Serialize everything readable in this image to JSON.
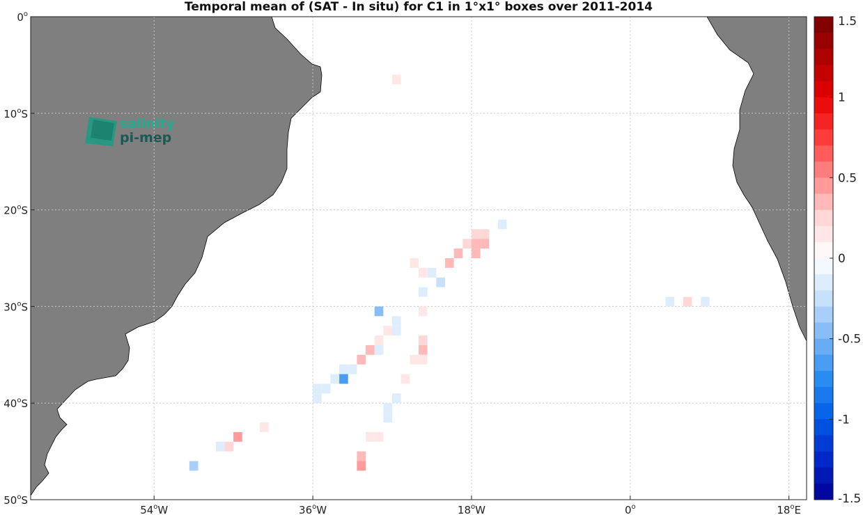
{
  "title": "Temporal mean of (SAT - In situ) for C1 in 1°x1° boxes over 2011-2014",
  "logo": {
    "line1": "salinity",
    "line2": "pi-mep"
  },
  "map": {
    "lon_range": [
      -68,
      20
    ],
    "lat_range": [
      -50,
      0
    ],
    "x_ticks": [
      {
        "lon": -54,
        "deg": "54",
        "hemi": "W"
      },
      {
        "lon": -36,
        "deg": "36",
        "hemi": "W"
      },
      {
        "lon": -18,
        "deg": "18",
        "hemi": "W"
      },
      {
        "lon": 0,
        "deg": "0",
        "hemi": ""
      },
      {
        "lon": 18,
        "deg": "18",
        "hemi": "E"
      }
    ],
    "y_ticks": [
      {
        "lat": 0,
        "deg": "0",
        "hemi": ""
      },
      {
        "lat": -10,
        "deg": "10",
        "hemi": "S"
      },
      {
        "lat": -20,
        "deg": "20",
        "hemi": "S"
      },
      {
        "lat": -30,
        "deg": "30",
        "hemi": "S"
      },
      {
        "lat": -40,
        "deg": "40",
        "hemi": "S"
      },
      {
        "lat": -50,
        "deg": "50",
        "hemi": "S"
      }
    ],
    "land_color": "#7f7f7f",
    "grid": "dotted"
  },
  "colorbar": {
    "min": -1.5,
    "max": 1.5,
    "levels": 30,
    "ticks": [
      "1.5",
      "1",
      "0.5",
      "0",
      "-0.5",
      "-1",
      "-1.5"
    ],
    "tick_values": [
      1.5,
      1,
      0.5,
      0,
      -0.5,
      -1,
      -1.5
    ]
  },
  "chart_data": {
    "type": "heatmap",
    "title": "Temporal mean of (SAT - In situ) for C1 in 1°x1° boxes over 2011-2014",
    "cells": [
      {
        "lon": -27,
        "lat": -6,
        "value": 0.15
      },
      {
        "lon": -15,
        "lat": -21,
        "value": -0.1
      },
      {
        "lon": -17,
        "lat": -22,
        "value": 0.2
      },
      {
        "lon": -18,
        "lat": -22,
        "value": 0.2
      },
      {
        "lon": -17,
        "lat": -23,
        "value": 0.3
      },
      {
        "lon": -18,
        "lat": -23,
        "value": 0.35
      },
      {
        "lon": -19,
        "lat": -23,
        "value": 0.25
      },
      {
        "lon": -18,
        "lat": -24,
        "value": 0.3
      },
      {
        "lon": -20,
        "lat": -24,
        "value": 0.35
      },
      {
        "lon": -21,
        "lat": -25,
        "value": 0.3
      },
      {
        "lon": -25,
        "lat": -25,
        "value": 0.15
      },
      {
        "lon": -24,
        "lat": -26,
        "value": 0.15
      },
      {
        "lon": -23,
        "lat": -26,
        "value": -0.1
      },
      {
        "lon": -22,
        "lat": -27,
        "value": -0.25
      },
      {
        "lon": -24,
        "lat": -28,
        "value": -0.1
      },
      {
        "lon": -29,
        "lat": -30,
        "value": -0.45
      },
      {
        "lon": -24,
        "lat": -30,
        "value": 0.1
      },
      {
        "lon": -27,
        "lat": -31,
        "value": -0.1
      },
      {
        "lon": -27,
        "lat": -32,
        "value": -0.1
      },
      {
        "lon": -28,
        "lat": -32,
        "value": 0.15
      },
      {
        "lon": -29,
        "lat": -33,
        "value": 0.1
      },
      {
        "lon": -24,
        "lat": -33,
        "value": 0.2
      },
      {
        "lon": -24,
        "lat": -34,
        "value": 0.3
      },
      {
        "lon": -29,
        "lat": -34,
        "value": -0.2
      },
      {
        "lon": -30,
        "lat": -34,
        "value": 0.35
      },
      {
        "lon": -31,
        "lat": -35,
        "value": 0.35
      },
      {
        "lon": -25,
        "lat": -35,
        "value": 0.15
      },
      {
        "lon": -24,
        "lat": -35,
        "value": 0.15
      },
      {
        "lon": -32,
        "lat": -36,
        "value": -0.2
      },
      {
        "lon": -33,
        "lat": -36,
        "value": -0.1
      },
      {
        "lon": -33,
        "lat": -37,
        "value": -0.7
      },
      {
        "lon": -34,
        "lat": -37,
        "value": -0.1
      },
      {
        "lon": -26,
        "lat": -37,
        "value": 0.15
      },
      {
        "lon": -35,
        "lat": -38,
        "value": -0.15
      },
      {
        "lon": -36,
        "lat": -38,
        "value": -0.15
      },
      {
        "lon": -36,
        "lat": -39,
        "value": -0.2
      },
      {
        "lon": -27,
        "lat": -39,
        "value": -0.2
      },
      {
        "lon": -28,
        "lat": -40,
        "value": -0.1
      },
      {
        "lon": -28,
        "lat": -41,
        "value": -0.15
      },
      {
        "lon": -42,
        "lat": -42,
        "value": 0.15
      },
      {
        "lon": -45,
        "lat": -43,
        "value": 0.45
      },
      {
        "lon": -30,
        "lat": -43,
        "value": 0.15
      },
      {
        "lon": -29,
        "lat": -43,
        "value": 0.15
      },
      {
        "lon": -46,
        "lat": -44,
        "value": 0.25
      },
      {
        "lon": -47,
        "lat": -44,
        "value": -0.1
      },
      {
        "lon": -31,
        "lat": -45,
        "value": 0.3
      },
      {
        "lon": -31,
        "lat": -46,
        "value": 0.45
      },
      {
        "lon": -50,
        "lat": -46,
        "value": -0.3
      },
      {
        "lon": 4,
        "lat": -29,
        "value": -0.1
      },
      {
        "lon": 6,
        "lat": -29,
        "value": 0.2
      },
      {
        "lon": 8,
        "lat": -29,
        "value": -0.1
      }
    ]
  }
}
